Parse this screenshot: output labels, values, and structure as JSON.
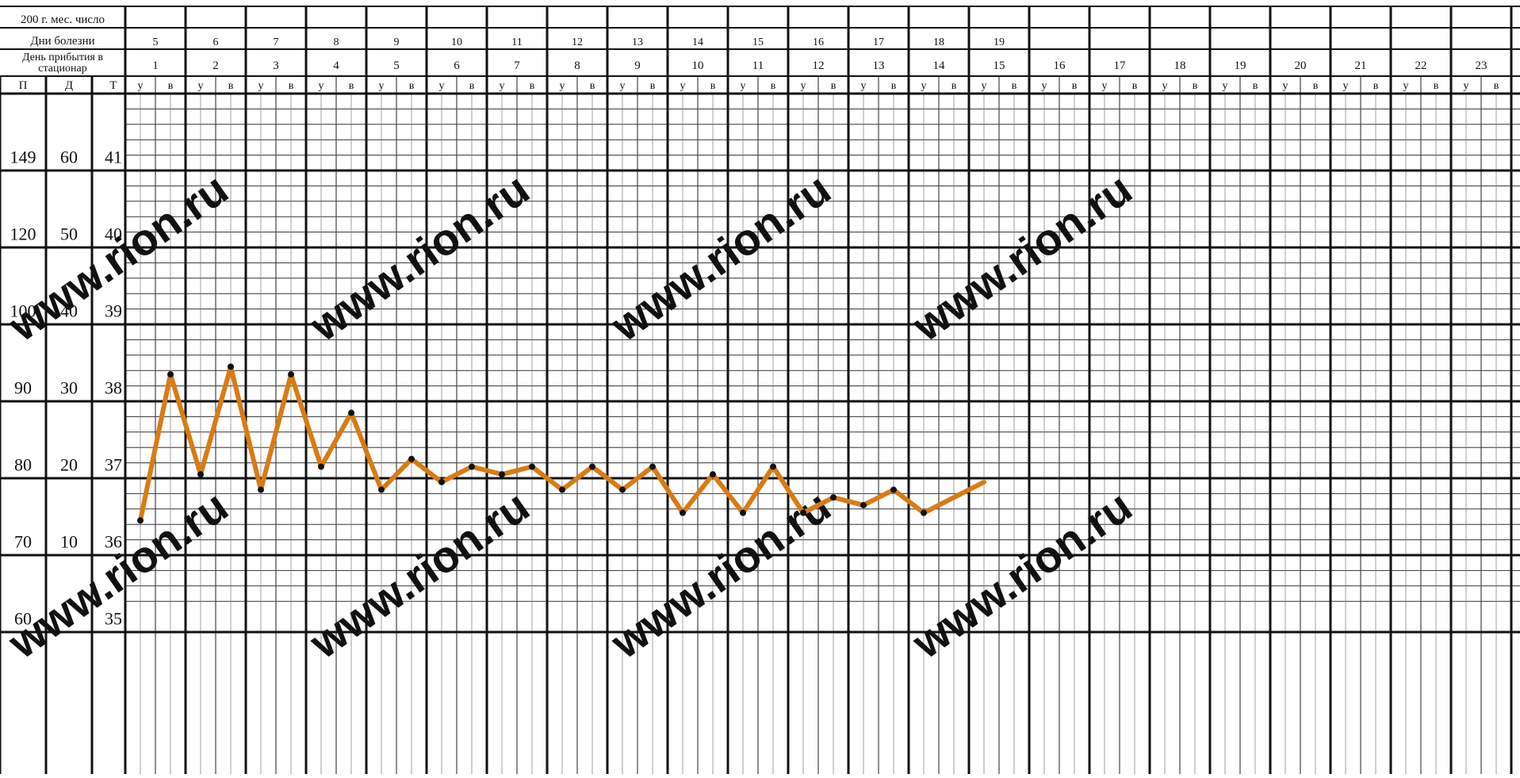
{
  "chart_data": {
    "type": "line",
    "title": "",
    "xlabel": "",
    "ylabel": "",
    "header": {
      "row1_label": "200 г. мес. число",
      "row2_label": "Дни болезни",
      "row3_label": "День прибытия в стационар",
      "col_headers": [
        "П",
        "Д",
        "Т"
      ],
      "morning_label": "у",
      "evening_label": "в"
    },
    "illness_days": [
      "5",
      "6",
      "7",
      "8",
      "9",
      "10",
      "11",
      "12",
      "13",
      "14",
      "15",
      "16",
      "17",
      "18",
      "19"
    ],
    "hospital_days": [
      "1",
      "2",
      "3",
      "4",
      "5",
      "6",
      "7",
      "8",
      "9",
      "10",
      "11",
      "12",
      "13",
      "14",
      "15",
      "16",
      "17",
      "18",
      "19",
      "20",
      "21",
      "22",
      "23"
    ],
    "scale_pulse": [
      "149",
      "120",
      "100",
      "90",
      "80",
      "70",
      "60"
    ],
    "scale_pressure": [
      "60",
      "50",
      "40",
      "30",
      "20",
      "10",
      ""
    ],
    "scale_temperature": [
      "41",
      "40",
      "39",
      "38",
      "37",
      "36",
      "35"
    ],
    "ylim": [
      34.9,
      41.65
    ],
    "series": [
      {
        "type": "temperature",
        "color": "#d97b14",
        "points": [
          {
            "day": 1,
            "slot": "m",
            "value": 36.1
          },
          {
            "day": 1,
            "slot": "e",
            "value": 38.0
          },
          {
            "day": 2,
            "slot": "m",
            "value": 36.7
          },
          {
            "day": 2,
            "slot": "e",
            "value": 38.1
          },
          {
            "day": 3,
            "slot": "m",
            "value": 36.5
          },
          {
            "day": 3,
            "slot": "e",
            "value": 38.0
          },
          {
            "day": 4,
            "slot": "m",
            "value": 36.8
          },
          {
            "day": 4,
            "slot": "e",
            "value": 37.5
          },
          {
            "day": 5,
            "slot": "m",
            "value": 36.5
          },
          {
            "day": 5,
            "slot": "e",
            "value": 36.9
          },
          {
            "day": 6,
            "slot": "m",
            "value": 36.6
          },
          {
            "day": 6,
            "slot": "e",
            "value": 36.8
          },
          {
            "day": 7,
            "slot": "m",
            "value": 36.7
          },
          {
            "day": 7,
            "slot": "e",
            "value": 36.8
          },
          {
            "day": 8,
            "slot": "m",
            "value": 36.5
          },
          {
            "day": 8,
            "slot": "e",
            "value": 36.8
          },
          {
            "day": 9,
            "slot": "m",
            "value": 36.5
          },
          {
            "day": 9,
            "slot": "e",
            "value": 36.8
          },
          {
            "day": 10,
            "slot": "m",
            "value": 36.2
          },
          {
            "day": 10,
            "slot": "e",
            "value": 36.7
          },
          {
            "day": 11,
            "slot": "m",
            "value": 36.2
          },
          {
            "day": 11,
            "slot": "e",
            "value": 36.8
          },
          {
            "day": 12,
            "slot": "m",
            "value": 36.2
          },
          {
            "day": 12,
            "slot": "e",
            "value": 36.4
          },
          {
            "day": 13,
            "slot": "m",
            "value": 36.3
          },
          {
            "day": 13,
            "slot": "e",
            "value": 36.5
          },
          {
            "day": 14,
            "slot": "m",
            "value": 36.2
          },
          {
            "day": 15,
            "slot": "m",
            "value": 36.6
          }
        ]
      }
    ],
    "watermark": "www.rion.ru",
    "grid": true,
    "legend": "none"
  }
}
